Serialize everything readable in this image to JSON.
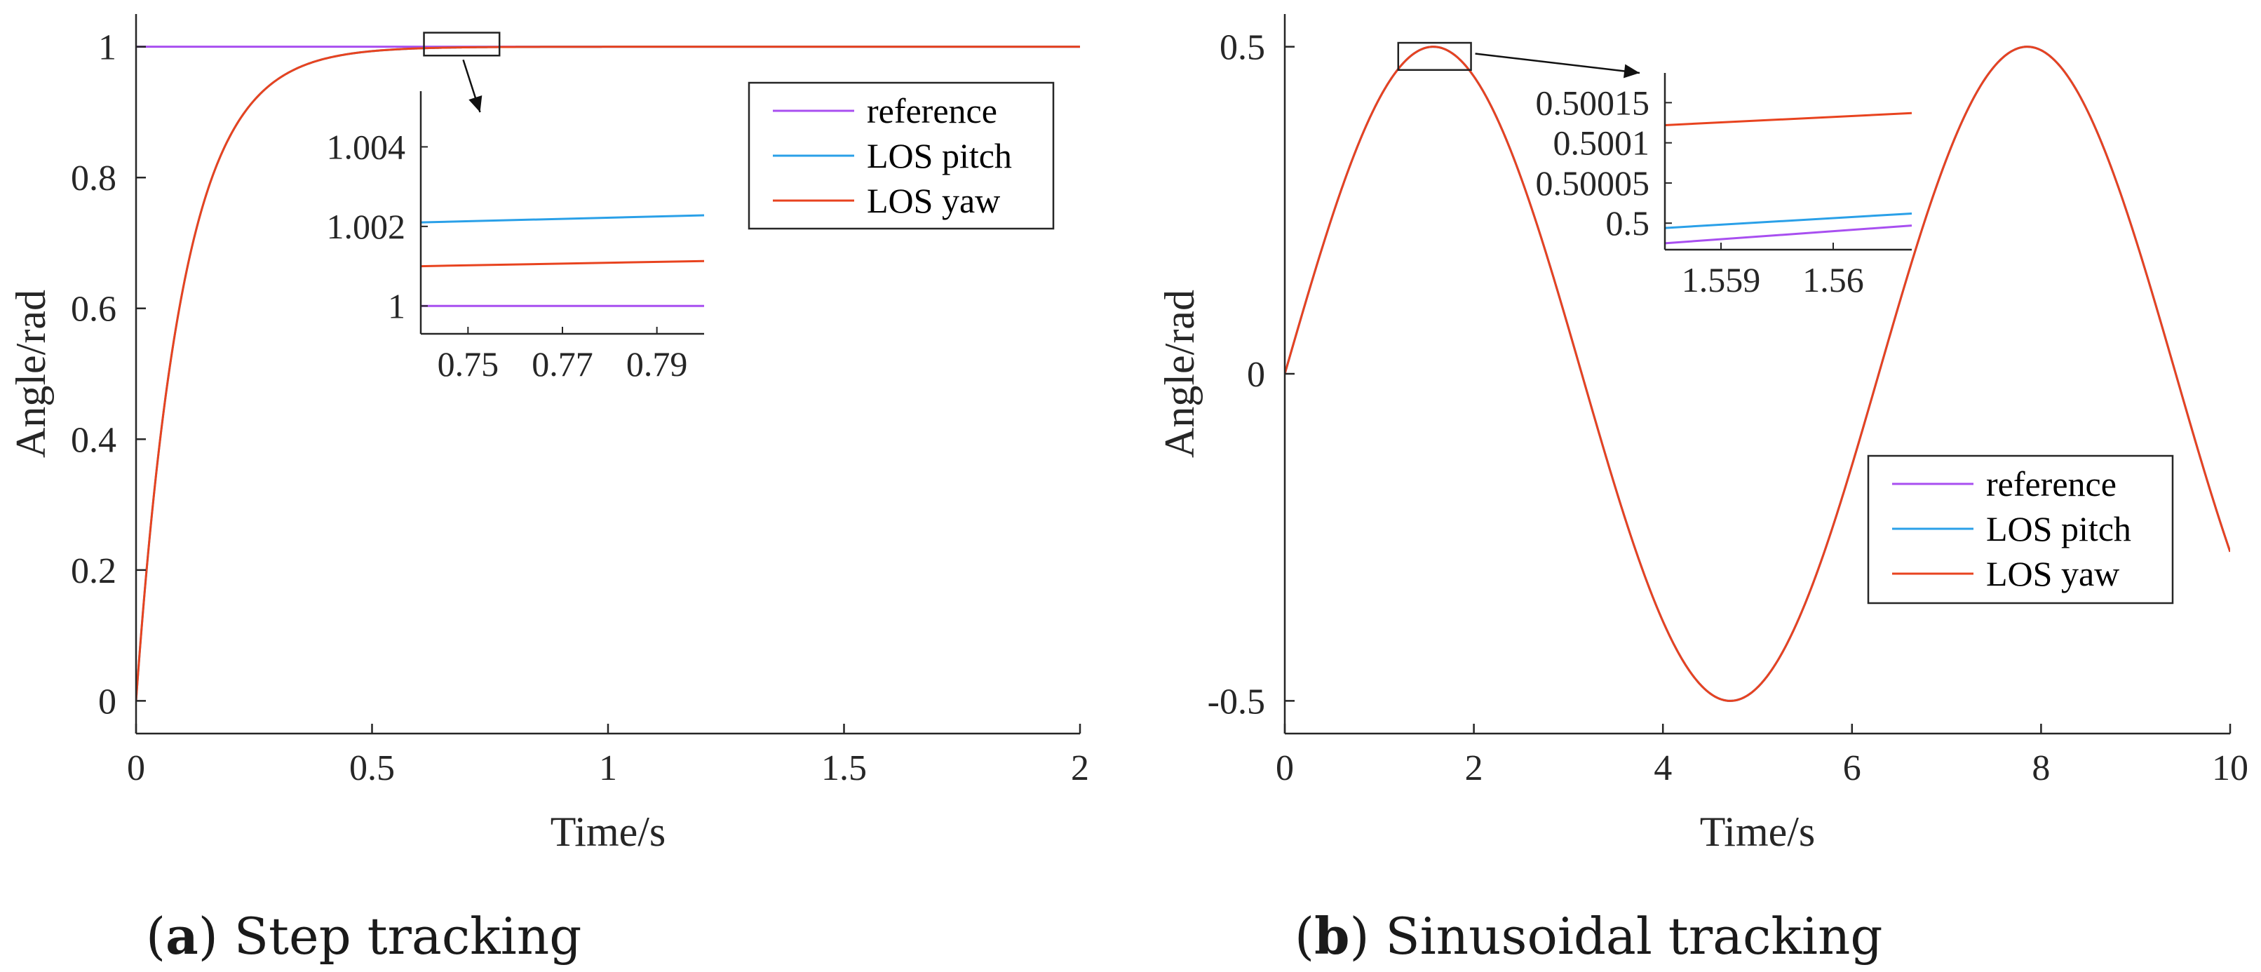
{
  "chart_data": [
    {
      "id": "a",
      "type": "line",
      "caption": {
        "letter": "a",
        "text": "Step tracking"
      },
      "xlabel": "Time/s",
      "ylabel": "Angle/rad",
      "xlim": [
        0,
        2
      ],
      "ylim": [
        -0.05,
        1.05
      ],
      "xticks": [
        0,
        0.5,
        1,
        1.5,
        2
      ],
      "xtick_labels": [
        "0",
        "0.5",
        "1",
        "1.5",
        "2"
      ],
      "yticks": [
        0,
        0.2,
        0.4,
        0.6,
        0.8,
        1
      ],
      "ytick_labels": [
        "0",
        "0.2",
        "0.4",
        "0.6",
        "0.8",
        "1"
      ],
      "series": [
        {
          "name": "reference",
          "color": "#a84ff0",
          "kind": "step",
          "value": 1
        },
        {
          "name": "LOS pitch",
          "color": "#2aa0e8",
          "kind": "first_order",
          "tau": 0.1
        },
        {
          "name": "LOS yaw",
          "color": "#e8431f",
          "kind": "first_order",
          "tau": 0.1
        }
      ],
      "legend": {
        "position": "top-right",
        "entries": [
          "reference",
          "LOS pitch",
          "LOS yaw"
        ]
      },
      "zoom_box": {
        "x": [
          0.61,
          0.77
        ],
        "y": [
          0.9865,
          1.0215
        ]
      },
      "inset": {
        "xlim": [
          0.74,
          0.8
        ],
        "ylim": [
          0.9993,
          1.0054
        ],
        "xticks": [
          0.75,
          0.77,
          0.79
        ],
        "xtick_labels": [
          "0.75",
          "0.77",
          "0.79"
        ],
        "yticks": [
          1,
          1.002,
          1.004
        ],
        "ytick_labels": [
          "1",
          "1.002",
          "1.004"
        ],
        "series": [
          {
            "name": "reference",
            "color": "#a84ff0",
            "x": [
              0.74,
              0.8
            ],
            "y": [
              1.0,
              1.0
            ]
          },
          {
            "name": "LOS pitch",
            "color": "#2aa0e8",
            "x": [
              0.74,
              0.8
            ],
            "y": [
              1.0021,
              1.00228
            ]
          },
          {
            "name": "LOS yaw",
            "color": "#e8431f",
            "x": [
              0.74,
              0.8
            ],
            "y": [
              1.001,
              1.00113
            ]
          }
        ]
      }
    },
    {
      "id": "b",
      "type": "line",
      "caption": {
        "letter": "b",
        "text": "Sinusoidal tracking"
      },
      "xlabel": "Time/s",
      "ylabel": "Angle/rad",
      "xlim": [
        0,
        10
      ],
      "ylim": [
        -0.55,
        0.55
      ],
      "xticks": [
        0,
        2,
        4,
        6,
        8,
        10
      ],
      "xtick_labels": [
        "0",
        "2",
        "4",
        "6",
        "8",
        "10"
      ],
      "yticks": [
        -0.5,
        0,
        0.5
      ],
      "ytick_labels": [
        "-0.5",
        "0",
        "0.5"
      ],
      "series": [
        {
          "name": "reference",
          "color": "#a84ff0",
          "kind": "sine",
          "amplitude": 0.5
        },
        {
          "name": "LOS pitch",
          "color": "#2aa0e8",
          "kind": "sine",
          "amplitude": 0.5
        },
        {
          "name": "LOS yaw",
          "color": "#e8431f",
          "kind": "sine",
          "amplitude": 0.5
        }
      ],
      "legend": {
        "position": "lower-right",
        "entries": [
          "reference",
          "LOS pitch",
          "LOS yaw"
        ]
      },
      "zoom_box": {
        "x": [
          1.2,
          1.97
        ],
        "y": [
          0.4645,
          0.506
        ]
      },
      "inset": {
        "xlim": [
          1.5585,
          1.5607
        ],
        "ylim": [
          0.499967,
          0.500187
        ],
        "xticks": [
          1.559,
          1.56
        ],
        "xtick_labels": [
          "1.559",
          "1.56"
        ],
        "yticks": [
          0.5,
          0.50005,
          0.5001,
          0.50015
        ],
        "ytick_labels": [
          "0.5",
          "0.50005",
          "0.5001",
          "0.50015"
        ],
        "series": [
          {
            "name": "reference",
            "color": "#a84ff0",
            "x": [
              1.5585,
              1.5607
            ],
            "y": [
              0.499975,
              0.499997
            ]
          },
          {
            "name": "LOS pitch",
            "color": "#2aa0e8",
            "x": [
              1.5585,
              1.5607
            ],
            "y": [
              0.499994,
              0.500012
            ]
          },
          {
            "name": "LOS yaw",
            "color": "#e8431f",
            "x": [
              1.5585,
              1.5607
            ],
            "y": [
              0.500122,
              0.500137
            ]
          }
        ]
      }
    }
  ]
}
